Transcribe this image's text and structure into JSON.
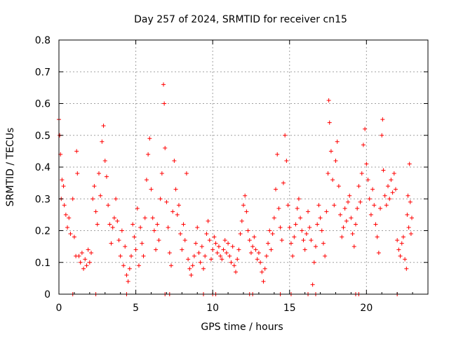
{
  "chart_data": {
    "type": "scatter",
    "title": "Day 257 of 2024, SRMTID for receiver cn15",
    "xlabel": "GPS time / hours",
    "ylabel": "SRMTID / TECUs",
    "xlim": [
      0,
      24
    ],
    "ylim": [
      0,
      0.8
    ],
    "xticks": [
      0,
      5,
      10,
      15,
      20
    ],
    "yticks": [
      0,
      0.1,
      0.2,
      0.3,
      0.4,
      0.5,
      0.6,
      0.7,
      0.8
    ],
    "xtick_labels": [
      "0",
      "5",
      "10",
      "15",
      "20"
    ],
    "ytick_labels": [
      "0",
      "0.1",
      "0.2",
      "0.3",
      "0.4",
      "0.5",
      "0.6",
      "0.7",
      "0.8"
    ],
    "grid": true,
    "marker": "+",
    "color": "#ff0000",
    "series": [
      {
        "name": "SRMTID",
        "points": [
          [
            0.0,
            0.55
          ],
          [
            0.05,
            0.5
          ],
          [
            0.1,
            0.44
          ],
          [
            0.15,
            0.3
          ],
          [
            0.2,
            0.36
          ],
          [
            0.3,
            0.34
          ],
          [
            0.35,
            0.28
          ],
          [
            0.45,
            0.25
          ],
          [
            0.55,
            0.21
          ],
          [
            0.65,
            0.24
          ],
          [
            0.75,
            0.19
          ],
          [
            0.9,
            0.3
          ],
          [
            1.0,
            0.18
          ],
          [
            1.1,
            0.12
          ],
          [
            1.15,
            0.45
          ],
          [
            1.2,
            0.38
          ],
          [
            1.3,
            0.12
          ],
          [
            1.4,
            0.1
          ],
          [
            1.5,
            0.13
          ],
          [
            1.6,
            0.08
          ],
          [
            1.7,
            0.11
          ],
          [
            1.8,
            0.09
          ],
          [
            1.9,
            0.14
          ],
          [
            2.0,
            0.1
          ],
          [
            2.1,
            0.13
          ],
          [
            2.2,
            0.3
          ],
          [
            2.3,
            0.34
          ],
          [
            2.4,
            0.26
          ],
          [
            2.5,
            0.22
          ],
          [
            2.6,
            0.38
          ],
          [
            2.7,
            0.31
          ],
          [
            2.8,
            0.48
          ],
          [
            2.9,
            0.53
          ],
          [
            3.0,
            0.42
          ],
          [
            3.1,
            0.37
          ],
          [
            3.2,
            0.28
          ],
          [
            3.3,
            0.22
          ],
          [
            3.4,
            0.16
          ],
          [
            3.5,
            0.21
          ],
          [
            3.6,
            0.24
          ],
          [
            3.7,
            0.3
          ],
          [
            3.8,
            0.23
          ],
          [
            3.9,
            0.17
          ],
          [
            4.0,
            0.12
          ],
          [
            4.1,
            0.2
          ],
          [
            4.2,
            0.09
          ],
          [
            4.3,
            0.15
          ],
          [
            4.4,
            0.06
          ],
          [
            4.5,
            0.04
          ],
          [
            4.6,
            0.08
          ],
          [
            4.7,
            0.12
          ],
          [
            4.8,
            0.22
          ],
          [
            4.9,
            0.18
          ],
          [
            5.0,
            0.14
          ],
          [
            5.1,
            0.27
          ],
          [
            5.2,
            0.09
          ],
          [
            5.3,
            0.21
          ],
          [
            5.4,
            0.16
          ],
          [
            5.5,
            0.12
          ],
          [
            5.6,
            0.24
          ],
          [
            5.7,
            0.36
          ],
          [
            5.8,
            0.44
          ],
          [
            5.9,
            0.49
          ],
          [
            6.0,
            0.33
          ],
          [
            6.1,
            0.24
          ],
          [
            6.2,
            0.2
          ],
          [
            6.3,
            0.14
          ],
          [
            6.4,
            0.22
          ],
          [
            6.5,
            0.17
          ],
          [
            6.6,
            0.3
          ],
          [
            6.7,
            0.38
          ],
          [
            6.8,
            0.66
          ],
          [
            6.85,
            0.6
          ],
          [
            6.9,
            0.46
          ],
          [
            7.0,
            0.29
          ],
          [
            7.1,
            0.21
          ],
          [
            7.2,
            0.13
          ],
          [
            7.3,
            0.09
          ],
          [
            7.4,
            0.26
          ],
          [
            7.5,
            0.42
          ],
          [
            7.6,
            0.33
          ],
          [
            7.7,
            0.25
          ],
          [
            7.8,
            0.28
          ],
          [
            7.9,
            0.19
          ],
          [
            8.0,
            0.14
          ],
          [
            8.1,
            0.22
          ],
          [
            8.2,
            0.17
          ],
          [
            8.3,
            0.38
          ],
          [
            8.4,
            0.11
          ],
          [
            8.5,
            0.08
          ],
          [
            8.6,
            0.06
          ],
          [
            8.7,
            0.09
          ],
          [
            8.8,
            0.12
          ],
          [
            8.9,
            0.16
          ],
          [
            9.0,
            0.21
          ],
          [
            9.1,
            0.13
          ],
          [
            9.2,
            0.1
          ],
          [
            9.3,
            0.15
          ],
          [
            9.4,
            0.08
          ],
          [
            9.5,
            0.12
          ],
          [
            9.6,
            0.19
          ],
          [
            9.7,
            0.23
          ],
          [
            9.8,
            0.17
          ],
          [
            9.9,
            0.11
          ],
          [
            10.0,
            0.14
          ],
          [
            10.1,
            0.18
          ],
          [
            10.2,
            0.16
          ],
          [
            10.3,
            0.13
          ],
          [
            10.4,
            0.15
          ],
          [
            10.5,
            0.12
          ],
          [
            10.6,
            0.11
          ],
          [
            10.7,
            0.14
          ],
          [
            10.8,
            0.17
          ],
          [
            10.9,
            0.13
          ],
          [
            11.0,
            0.16
          ],
          [
            11.1,
            0.12
          ],
          [
            11.2,
            0.1
          ],
          [
            11.3,
            0.15
          ],
          [
            11.4,
            0.09
          ],
          [
            11.5,
            0.07
          ],
          [
            11.6,
            0.11
          ],
          [
            11.7,
            0.14
          ],
          [
            11.8,
            0.19
          ],
          [
            11.9,
            0.23
          ],
          [
            12.0,
            0.28
          ],
          [
            12.1,
            0.31
          ],
          [
            12.2,
            0.26
          ],
          [
            12.3,
            0.2
          ],
          [
            12.4,
            0.17
          ],
          [
            12.5,
            0.13
          ],
          [
            12.6,
            0.15
          ],
          [
            12.7,
            0.18
          ],
          [
            12.8,
            0.14
          ],
          [
            12.9,
            0.11
          ],
          [
            13.0,
            0.13
          ],
          [
            13.1,
            0.1
          ],
          [
            13.2,
            0.07
          ],
          [
            13.3,
            0.04
          ],
          [
            13.4,
            0.08
          ],
          [
            13.5,
            0.12
          ],
          [
            13.6,
            0.16
          ],
          [
            13.7,
            0.2
          ],
          [
            13.8,
            0.14
          ],
          [
            13.9,
            0.19
          ],
          [
            14.0,
            0.24
          ],
          [
            14.1,
            0.33
          ],
          [
            14.2,
            0.44
          ],
          [
            14.3,
            0.27
          ],
          [
            14.4,
            0.21
          ],
          [
            14.5,
            0.17
          ],
          [
            14.6,
            0.35
          ],
          [
            14.7,
            0.5
          ],
          [
            14.8,
            0.42
          ],
          [
            14.9,
            0.28
          ],
          [
            15.0,
            0.21
          ],
          [
            15.1,
            0.16
          ],
          [
            15.2,
            0.12
          ],
          [
            15.3,
            0.18
          ],
          [
            15.4,
            0.22
          ],
          [
            15.5,
            0.27
          ],
          [
            15.6,
            0.3
          ],
          [
            15.7,
            0.24
          ],
          [
            15.8,
            0.2
          ],
          [
            15.9,
            0.17
          ],
          [
            16.0,
            0.14
          ],
          [
            16.1,
            0.19
          ],
          [
            16.2,
            0.26
          ],
          [
            16.3,
            0.21
          ],
          [
            16.4,
            0.17
          ],
          [
            16.5,
            0.03
          ],
          [
            16.6,
            0.1
          ],
          [
            16.7,
            0.15
          ],
          [
            16.8,
            0.22
          ],
          [
            16.9,
            0.28
          ],
          [
            17.0,
            0.24
          ],
          [
            17.1,
            0.2
          ],
          [
            17.2,
            0.16
          ],
          [
            17.3,
            0.12
          ],
          [
            17.4,
            0.26
          ],
          [
            17.5,
            0.38
          ],
          [
            17.55,
            0.61
          ],
          [
            17.6,
            0.54
          ],
          [
            17.7,
            0.45
          ],
          [
            17.8,
            0.36
          ],
          [
            17.9,
            0.28
          ],
          [
            18.0,
            0.42
          ],
          [
            18.1,
            0.48
          ],
          [
            18.2,
            0.34
          ],
          [
            18.3,
            0.25
          ],
          [
            18.4,
            0.18
          ],
          [
            18.5,
            0.21
          ],
          [
            18.6,
            0.27
          ],
          [
            18.7,
            0.23
          ],
          [
            18.8,
            0.29
          ],
          [
            18.9,
            0.31
          ],
          [
            19.0,
            0.24
          ],
          [
            19.1,
            0.19
          ],
          [
            19.2,
            0.15
          ],
          [
            19.3,
            0.22
          ],
          [
            19.4,
            0.27
          ],
          [
            19.5,
            0.34
          ],
          [
            19.6,
            0.29
          ],
          [
            19.7,
            0.38
          ],
          [
            19.8,
            0.47
          ],
          [
            19.9,
            0.52
          ],
          [
            20.0,
            0.41
          ],
          [
            20.1,
            0.36
          ],
          [
            20.2,
            0.3
          ],
          [
            20.3,
            0.25
          ],
          [
            20.4,
            0.33
          ],
          [
            20.5,
            0.28
          ],
          [
            20.6,
            0.22
          ],
          [
            20.7,
            0.18
          ],
          [
            20.8,
            0.13
          ],
          [
            20.9,
            0.27
          ],
          [
            21.0,
            0.5
          ],
          [
            21.05,
            0.55
          ],
          [
            21.1,
            0.39
          ],
          [
            21.2,
            0.31
          ],
          [
            21.3,
            0.28
          ],
          [
            21.4,
            0.34
          ],
          [
            21.5,
            0.3
          ],
          [
            21.6,
            0.36
          ],
          [
            21.7,
            0.32
          ],
          [
            21.8,
            0.38
          ],
          [
            21.9,
            0.33
          ],
          [
            22.0,
            0.17
          ],
          [
            22.1,
            0.14
          ],
          [
            22.2,
            0.12
          ],
          [
            22.3,
            0.16
          ],
          [
            22.4,
            0.18
          ],
          [
            22.5,
            0.11
          ],
          [
            22.6,
            0.08
          ],
          [
            22.65,
            0.25
          ],
          [
            22.7,
            0.31
          ],
          [
            22.75,
            0.21
          ],
          [
            22.8,
            0.41
          ],
          [
            22.85,
            0.29
          ],
          [
            22.9,
            0.19
          ],
          [
            22.95,
            0.24
          ]
        ]
      }
    ],
    "baseline_points": [
      0.9,
      2.4,
      4.4,
      6.9,
      7.2,
      9.4,
      10.0,
      10.2,
      12.4,
      12.6,
      14.4,
      15.1,
      16.2,
      16.7,
      19.3,
      19.5,
      22.0
    ]
  }
}
